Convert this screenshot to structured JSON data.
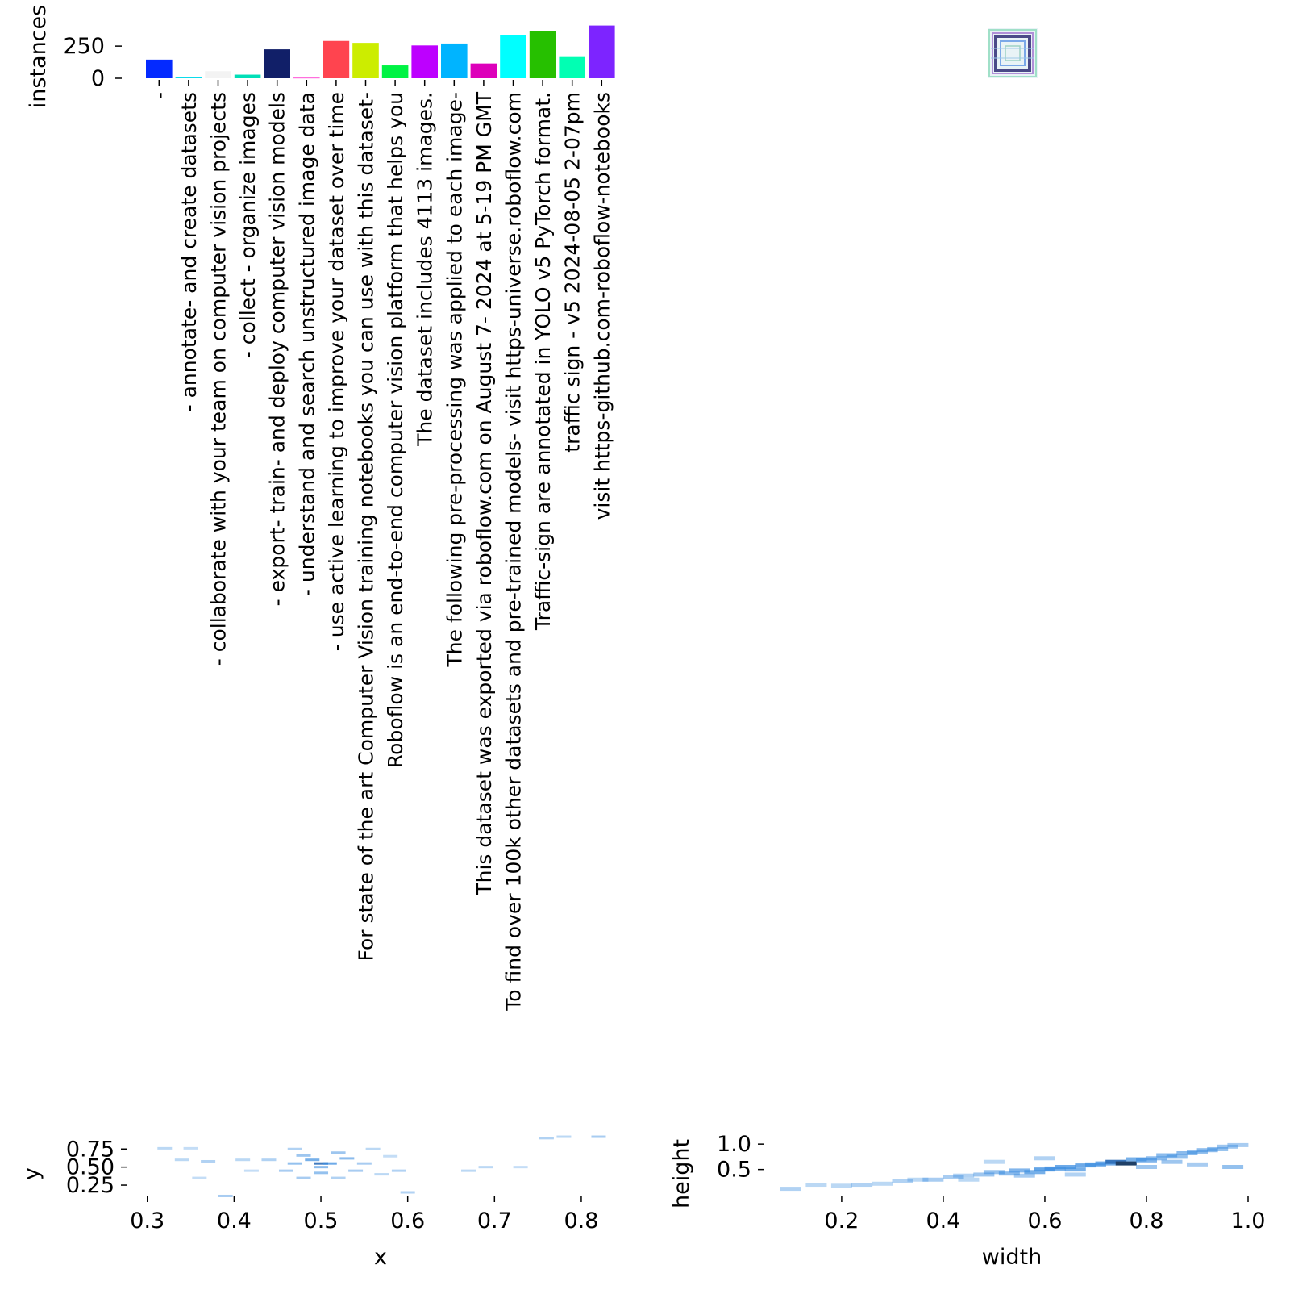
{
  "chart_data": [
    {
      "type": "bar",
      "ylabel": "instances",
      "yticks": [
        "0",
        "250"
      ],
      "ytick_values": [
        0,
        250
      ],
      "ylim": [
        0,
        420
      ],
      "categories": [
        "-",
        "- annotate- and create datasets",
        "- collaborate with your team on computer vision projects",
        "- collect - organize images",
        "- export- train- and deploy computer vision models",
        "- understand and search unstructured image data",
        "- use active learning to improve your dataset over time",
        "For state of the art Computer Vision training notebooks you can use with this dataset-",
        "Roboflow is an end-to-end computer vision platform that helps you",
        "The dataset includes 4113 images.",
        "The following pre-processing was applied to each image-",
        "This dataset was exported via roboflow.com on August 7- 2024 at 5-19 PM GMT",
        "To find over 100k other datasets and pre-trained models- visit https-universe.roboflow.com",
        "Traffic-sign are annotated in YOLO v5 PyTorch format.",
        "traffic sign - v5 2024-08-05 2-07pm",
        "visit https-github.com-roboflow-notebooks"
      ],
      "values": [
        145,
        12,
        55,
        28,
        225,
        8,
        290,
        275,
        100,
        255,
        270,
        115,
        335,
        365,
        165,
        410
      ],
      "colors": [
        "#042aff",
        "#0bdbeb",
        "#f3f3f3",
        "#00dfb7",
        "#111f68",
        "#ff6fdd",
        "#ff444f",
        "#cced00",
        "#00f344",
        "#bd00ff",
        "#00b4ff",
        "#dd00ba",
        "#00ffff",
        "#26c000",
        "#01ffb3",
        "#7d24ff"
      ]
    },
    {
      "type": "scatter",
      "subtype": "box-overlay",
      "note_color": "#5a5aa0"
    },
    {
      "type": "heatmap",
      "xlabel": "x",
      "ylabel": "y",
      "xticks": [
        "0.3",
        "0.4",
        "0.5",
        "0.6",
        "0.7",
        "0.8"
      ],
      "xtick_values": [
        0.3,
        0.4,
        0.5,
        0.6,
        0.7,
        0.8
      ],
      "yticks": [
        "0.25",
        "0.50",
        "0.75"
      ],
      "ytick_values": [
        0.25,
        0.5,
        0.75
      ],
      "xlim": [
        0.29,
        0.84
      ],
      "ylim": [
        0.15,
        0.82
      ],
      "cells": [
        [
          0.32,
          0.76,
          0.2
        ],
        [
          0.35,
          0.76,
          0.15
        ],
        [
          0.34,
          0.6,
          0.2
        ],
        [
          0.37,
          0.58,
          0.25
        ],
        [
          0.41,
          0.6,
          0.2
        ],
        [
          0.44,
          0.6,
          0.25
        ],
        [
          0.36,
          0.35,
          0.15
        ],
        [
          0.42,
          0.45,
          0.15
        ],
        [
          0.39,
          0.1,
          0.3
        ],
        [
          0.47,
          0.75,
          0.25
        ],
        [
          0.48,
          0.66,
          0.35
        ],
        [
          0.49,
          0.6,
          0.55
        ],
        [
          0.5,
          0.55,
          0.75
        ],
        [
          0.51,
          0.55,
          0.6
        ],
        [
          0.5,
          0.5,
          0.45
        ],
        [
          0.52,
          0.7,
          0.35
        ],
        [
          0.53,
          0.62,
          0.45
        ],
        [
          0.54,
          0.45,
          0.3
        ],
        [
          0.46,
          0.45,
          0.3
        ],
        [
          0.55,
          0.55,
          0.3
        ],
        [
          0.56,
          0.75,
          0.2
        ],
        [
          0.57,
          0.4,
          0.2
        ],
        [
          0.59,
          0.45,
          0.25
        ],
        [
          0.6,
          0.15,
          0.25
        ],
        [
          0.58,
          0.65,
          0.15
        ],
        [
          0.67,
          0.45,
          0.2
        ],
        [
          0.69,
          0.5,
          0.2
        ],
        [
          0.73,
          0.5,
          0.15
        ],
        [
          0.76,
          0.9,
          0.25
        ],
        [
          0.78,
          0.92,
          0.2
        ],
        [
          0.82,
          0.92,
          0.3
        ],
        [
          0.52,
          0.35,
          0.25
        ],
        [
          0.48,
          0.35,
          0.3
        ],
        [
          0.5,
          0.42,
          0.4
        ],
        [
          0.47,
          0.55,
          0.4
        ]
      ]
    },
    {
      "type": "heatmap",
      "xlabel": "width",
      "ylabel": "height",
      "xticks": [
        "0.2",
        "0.4",
        "0.6",
        "0.8",
        "1.0"
      ],
      "xtick_values": [
        0.2,
        0.4,
        0.6,
        0.8,
        1.0
      ],
      "yticks": [
        "0.5",
        "1.0"
      ],
      "ytick_values": [
        0.5,
        1.0
      ],
      "xlim": [
        0.07,
        1.0
      ],
      "ylim": [
        0.05,
        1.05
      ],
      "cells": [
        [
          0.1,
          0.12,
          0.25
        ],
        [
          0.15,
          0.2,
          0.2
        ],
        [
          0.2,
          0.18,
          0.2
        ],
        [
          0.24,
          0.2,
          0.25
        ],
        [
          0.28,
          0.22,
          0.2
        ],
        [
          0.32,
          0.28,
          0.25
        ],
        [
          0.35,
          0.3,
          0.2
        ],
        [
          0.38,
          0.3,
          0.3
        ],
        [
          0.42,
          0.35,
          0.3
        ],
        [
          0.44,
          0.38,
          0.25
        ],
        [
          0.48,
          0.4,
          0.35
        ],
        [
          0.5,
          0.45,
          0.4
        ],
        [
          0.53,
          0.42,
          0.45
        ],
        [
          0.55,
          0.48,
          0.5
        ],
        [
          0.58,
          0.45,
          0.55
        ],
        [
          0.6,
          0.5,
          0.65
        ],
        [
          0.62,
          0.52,
          0.6
        ],
        [
          0.64,
          0.55,
          0.6
        ],
        [
          0.66,
          0.5,
          0.55
        ],
        [
          0.68,
          0.58,
          0.6
        ],
        [
          0.7,
          0.6,
          0.55
        ],
        [
          0.72,
          0.62,
          0.6
        ],
        [
          0.74,
          0.65,
          0.8
        ],
        [
          0.76,
          0.62,
          0.9
        ],
        [
          0.78,
          0.7,
          0.55
        ],
        [
          0.8,
          0.68,
          0.5
        ],
        [
          0.82,
          0.72,
          0.45
        ],
        [
          0.84,
          0.78,
          0.45
        ],
        [
          0.86,
          0.75,
          0.4
        ],
        [
          0.88,
          0.82,
          0.45
        ],
        [
          0.9,
          0.85,
          0.4
        ],
        [
          0.92,
          0.88,
          0.45
        ],
        [
          0.94,
          0.9,
          0.4
        ],
        [
          0.96,
          0.95,
          0.35
        ],
        [
          0.98,
          0.98,
          0.3
        ],
        [
          0.97,
          0.55,
          0.4
        ],
        [
          0.9,
          0.6,
          0.3
        ],
        [
          0.6,
          0.72,
          0.25
        ],
        [
          0.5,
          0.65,
          0.2
        ],
        [
          0.66,
          0.4,
          0.25
        ],
        [
          0.56,
          0.38,
          0.3
        ],
        [
          0.8,
          0.55,
          0.35
        ],
        [
          0.85,
          0.65,
          0.35
        ],
        [
          0.45,
          0.3,
          0.2
        ]
      ]
    }
  ]
}
